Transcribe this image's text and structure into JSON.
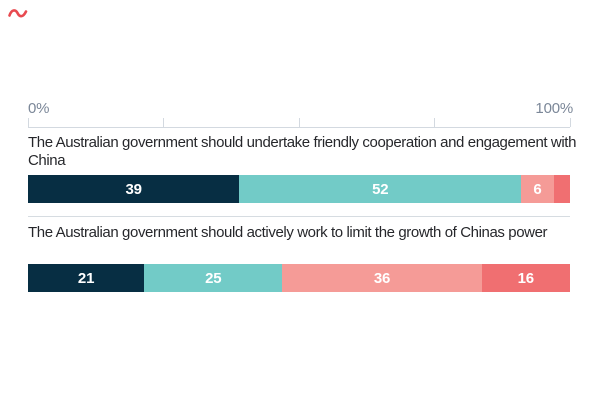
{
  "logo": {
    "color": "#e84a50"
  },
  "axis": {
    "min_label": "0%",
    "max_label": "100%"
  },
  "styles": {
    "axis_label_color": "#7b8798",
    "axis_line_color": "#d3d9e0",
    "divider_color": "#d6dce1",
    "question_color": "#26272b",
    "bar_label_color": "#ffffff"
  },
  "chart_data": {
    "type": "bar",
    "orientation": "horizontal",
    "stacked": true,
    "title": "",
    "xlabel": "",
    "ylabel": "",
    "x_axis": {
      "min": 0,
      "max": 100,
      "unit": "%",
      "ticks": [
        0,
        25,
        50,
        75,
        100
      ],
      "visible_tick_labels": [
        "0%",
        "100%"
      ]
    },
    "grid": false,
    "legend_position": "none",
    "palette": {
      "dark_navy": "#072e43",
      "teal": "#72cbc7",
      "salmon": "#f59b97",
      "red": "#f06f71"
    },
    "bars": [
      {
        "question": "The Australian government should undertake friendly cooperation and engagement with China",
        "segments": [
          {
            "value": 39,
            "label": "39",
            "color": "#072e43"
          },
          {
            "value": 52,
            "label": "52",
            "color": "#72cbc7"
          },
          {
            "value": 6,
            "label": "6",
            "color": "#f59b97"
          },
          {
            "value": 3,
            "label": "",
            "color": "#f06f71"
          }
        ]
      },
      {
        "question": "The Australian government should actively work to limit the growth of Chinas power",
        "segments": [
          {
            "value": 21,
            "label": "21",
            "color": "#072e43"
          },
          {
            "value": 25,
            "label": "25",
            "color": "#72cbc7"
          },
          {
            "value": 36,
            "label": "36",
            "color": "#f59b97"
          },
          {
            "value": 16,
            "label": "16",
            "color": "#f06f71"
          }
        ]
      }
    ]
  }
}
